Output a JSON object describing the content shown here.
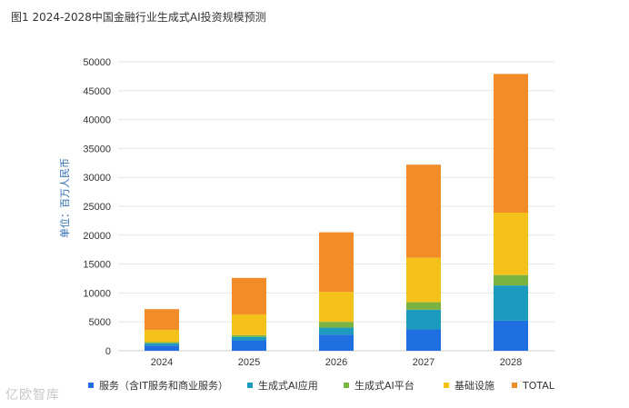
{
  "chart_data": {
    "type": "bar",
    "stacked": true,
    "title": "图1 2024-2028中国金融行业生成式AI投资规模预测",
    "ylabel": "单位：百万人民币",
    "xlabel": "",
    "categories": [
      "2024",
      "2025",
      "2026",
      "2027",
      "2028"
    ],
    "ylim": [
      0,
      50000
    ],
    "yticks": [
      0,
      5000,
      10000,
      15000,
      20000,
      25000,
      30000,
      35000,
      40000,
      45000,
      50000
    ],
    "grid": true,
    "legend_position": "bottom",
    "series": [
      {
        "name": "服务（含IT服务和商业服务）",
        "color": "#1f6fe0",
        "values": [
          900,
          1800,
          2800,
          3700,
          5200
        ]
      },
      {
        "name": "生成式AI应用",
        "color": "#1d9bbf",
        "values": [
          400,
          600,
          1200,
          3400,
          6100
        ]
      },
      {
        "name": "生成式AI平台",
        "color": "#7bb342",
        "values": [
          200,
          300,
          1000,
          1300,
          1800
        ]
      },
      {
        "name": "基础设施",
        "color": "#f5c21b",
        "values": [
          2100,
          3600,
          5200,
          7700,
          10800
        ]
      },
      {
        "name": "TOTAL",
        "color": "#f28c28",
        "values": [
          3600,
          6300,
          10300,
          16100,
          24000
        ]
      }
    ]
  },
  "watermark": "亿欧智库"
}
